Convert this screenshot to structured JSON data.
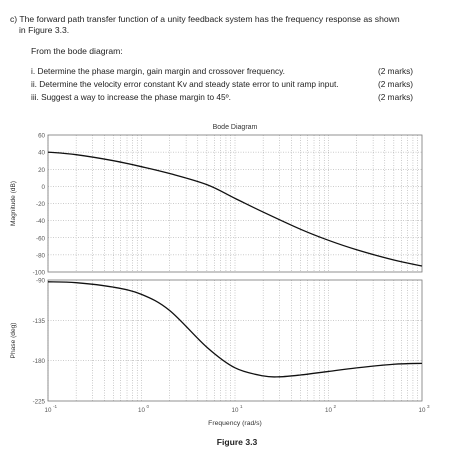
{
  "question": {
    "intro_line1": "c) The forward path transfer function of a unity feedback system has the frequency response as shown",
    "intro_line2": "in Figure 3.3.",
    "sub": "From the bode diagram:",
    "tasks": [
      {
        "label": "i.  Determine the phase margin, gain margin and crossover frequency.",
        "marks": "(2 marks)"
      },
      {
        "label": "ii.  Determine the velocity error constant Kv and steady state error to unit ramp input.",
        "marks": "(2 marks)"
      },
      {
        "label": "iii.  Suggest a way to increase the phase margin to 45º.",
        "marks": "(2 marks)"
      }
    ]
  },
  "figure_caption": "Figure 3.3",
  "chart_data": [
    {
      "type": "line",
      "title": "Bode Diagram",
      "ylabel": "Magnitude (dB)",
      "xlabel": "",
      "xscale": "log",
      "xlim": [
        0.1,
        1000
      ],
      "ylim": [
        -100,
        60
      ],
      "yticks": [
        "60",
        "40",
        "20",
        "0",
        "-20",
        "-40",
        "-60",
        "-80",
        "-100"
      ],
      "grid": true,
      "x": [
        0.1,
        0.2,
        0.5,
        1,
        2,
        5,
        10,
        20,
        50,
        100,
        200,
        500,
        1000
      ],
      "y": [
        40,
        37,
        30,
        23,
        15,
        2,
        -14,
        -30,
        -50,
        -63,
        -74,
        -86,
        -93
      ]
    },
    {
      "type": "line",
      "title": "",
      "ylabel": "Phase (deg)",
      "xlabel": "Frequency (rad/s)",
      "xscale": "log",
      "xlim": [
        0.1,
        1000
      ],
      "ylim": [
        -225,
        -90
      ],
      "yticks": [
        "-90",
        "-135",
        "-180",
        "-225"
      ],
      "xticks": [
        "10",
        "10",
        "10",
        "10",
        "10"
      ],
      "xtick_exponents": [
        "-1",
        "0",
        "1",
        "2",
        "3"
      ],
      "grid": true,
      "x": [
        0.1,
        0.2,
        0.5,
        1,
        2,
        5,
        10,
        20,
        30,
        50,
        100,
        200,
        500,
        1000
      ],
      "y": [
        -92,
        -93,
        -98,
        -106,
        -124,
        -165,
        -188,
        -197,
        -198,
        -196,
        -192,
        -188,
        -184,
        -183
      ]
    }
  ]
}
